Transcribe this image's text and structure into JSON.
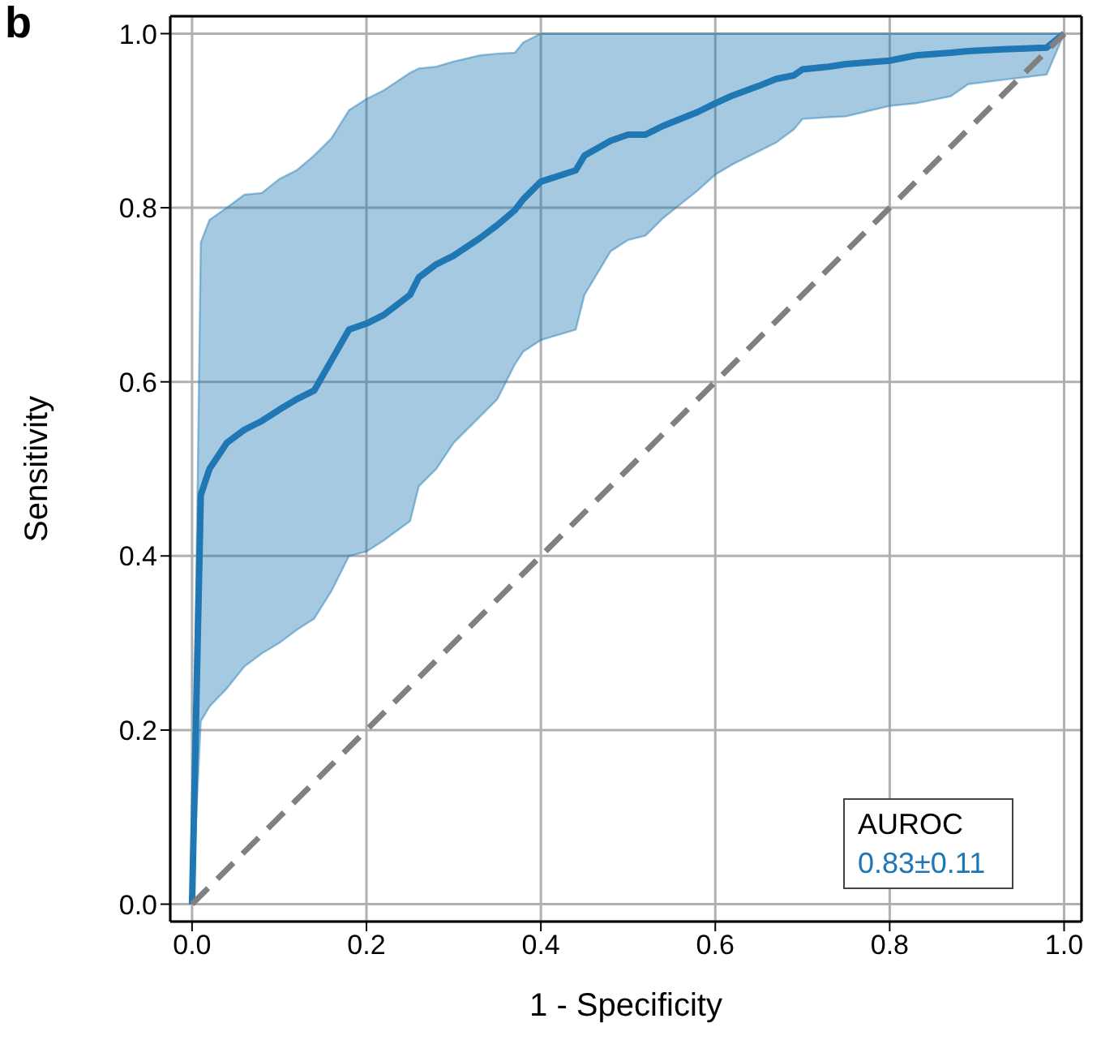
{
  "chart_data": {
    "type": "line",
    "title": "b",
    "xlabel": "1 - Specificity",
    "ylabel": "Sensitivity",
    "xlim": [
      -0.025,
      1.02
    ],
    "ylim": [
      -0.02,
      1.02
    ],
    "xticks": [
      {
        "value": 0,
        "label": "0.0"
      },
      0.2,
      0.4,
      0.6,
      0.8,
      {
        "value": 1,
        "label": "1.0"
      }
    ],
    "yticks": [
      {
        "value": 0,
        "label": "0.0"
      },
      0.2,
      0.4,
      0.6,
      0.8,
      {
        "value": 1,
        "label": "1.0"
      }
    ],
    "grid": true,
    "annotations": [
      "AUROC",
      "0.83±0.11"
    ],
    "x": [
      0,
      0.01,
      0.02,
      0.04,
      0.06,
      0.08,
      0.1,
      0.12,
      0.14,
      0.16,
      0.18,
      0.2,
      0.22,
      0.25,
      0.26,
      0.28,
      0.3,
      0.33,
      0.35,
      0.37,
      0.38,
      0.4,
      0.44,
      0.45,
      0.48,
      0.5,
      0.52,
      0.54,
      0.58,
      0.6,
      0.62,
      0.65,
      0.67,
      0.69,
      0.7,
      0.73,
      0.75,
      0.8,
      0.83,
      0.87,
      0.89,
      0.93,
      0.98,
      1.0
    ],
    "series": [
      {
        "color": "#1f77b4",
        "values": [
          0,
          0.47,
          0.5,
          0.53,
          0.545,
          0.555,
          0.568,
          0.58,
          0.59,
          0.625,
          0.66,
          0.667,
          0.677,
          0.7,
          0.72,
          0.735,
          0.745,
          0.765,
          0.78,
          0.797,
          0.81,
          0.83,
          0.843,
          0.86,
          0.877,
          0.884,
          0.884,
          0.894,
          0.91,
          0.92,
          0.929,
          0.94,
          0.948,
          0.952,
          0.959,
          0.962,
          0.965,
          0.969,
          0.975,
          0.978,
          0.98,
          0.982,
          0.984,
          1.0
        ],
        "lower": [
          0,
          0.21,
          0.227,
          0.248,
          0.273,
          0.288,
          0.3,
          0.315,
          0.328,
          0.36,
          0.4,
          0.405,
          0.418,
          0.44,
          0.48,
          0.5,
          0.53,
          0.56,
          0.58,
          0.62,
          0.635,
          0.648,
          0.66,
          0.7,
          0.75,
          0.763,
          0.768,
          0.788,
          0.82,
          0.838,
          0.85,
          0.865,
          0.875,
          0.89,
          0.902,
          0.904,
          0.905,
          0.917,
          0.92,
          0.928,
          0.942,
          0.947,
          0.953,
          1.0
        ],
        "upper": [
          0,
          0.76,
          0.786,
          0.8,
          0.815,
          0.817,
          0.833,
          0.843,
          0.86,
          0.88,
          0.912,
          0.925,
          0.935,
          0.955,
          0.96,
          0.962,
          0.968,
          0.975,
          0.977,
          0.978,
          0.99,
          1.0,
          1.0,
          1.0,
          1.0,
          1.0,
          1.0,
          1.0,
          1.0,
          1.0,
          1.0,
          1.0,
          1.0,
          1.0,
          1.0,
          1.0,
          1.0,
          1.0,
          1.0,
          1.0,
          1.0,
          1.0,
          1.0,
          1.0
        ]
      },
      {
        "x": [
          0,
          1
        ],
        "values": [
          0,
          1
        ],
        "color": "#808080",
        "line_style": "dashed"
      }
    ]
  }
}
